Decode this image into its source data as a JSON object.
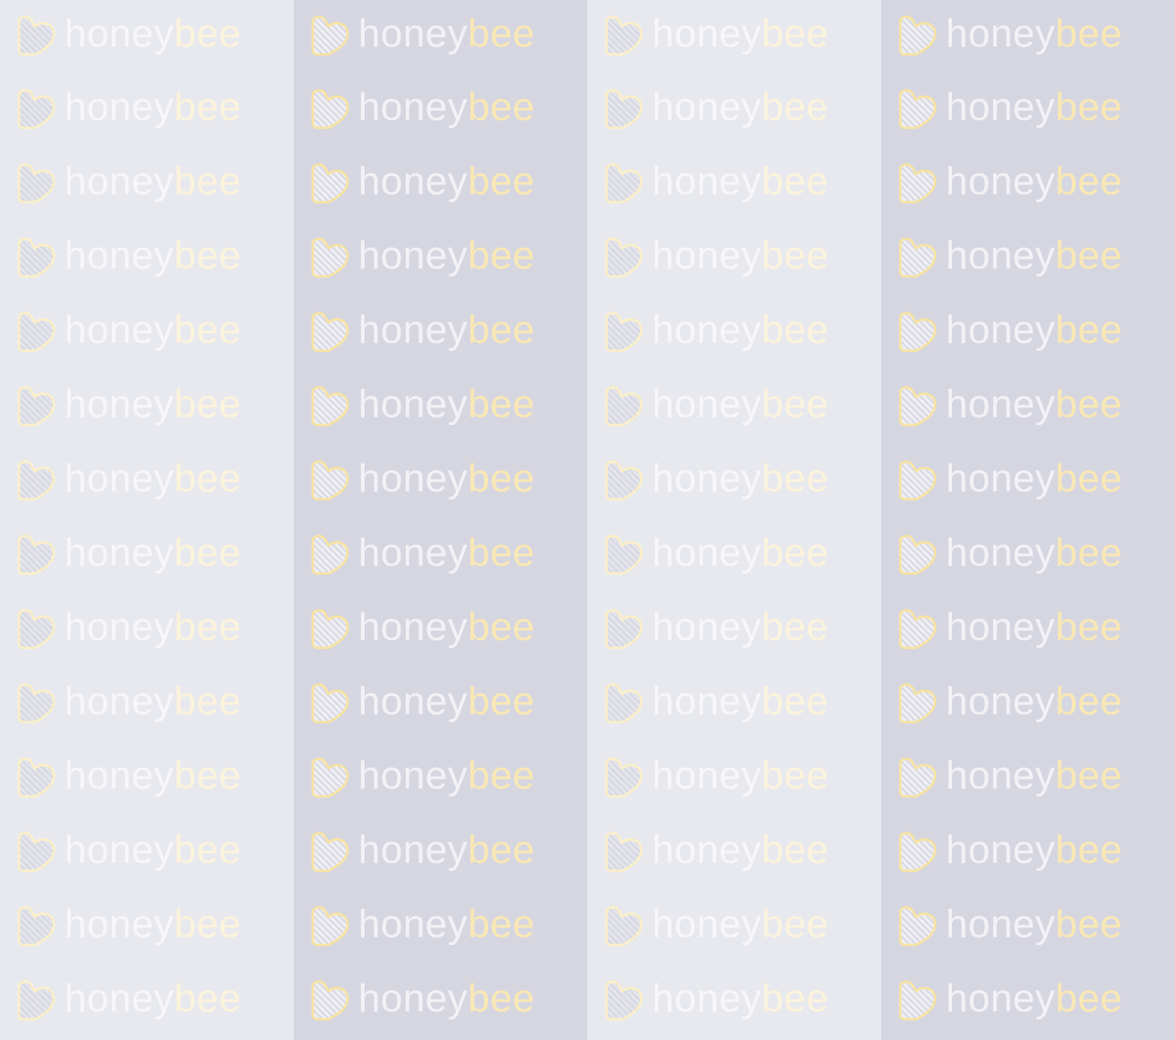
{
  "brand": {
    "word_primary": "honey",
    "word_accent": "bee",
    "icon": "striped-heart-icon"
  },
  "rows_per_column": 14,
  "columns": [
    {
      "bg": "#e8e9ee",
      "word_primary_color": "#f7f7f9",
      "word_accent_color": "#fcf3dc",
      "icon_outline_color": "#fbefc8",
      "icon_stripe_color": "#d9dae3"
    },
    {
      "bg": "#d6d6e1",
      "word_primary_color": "#f2f2f6",
      "word_accent_color": "#f9e8b4",
      "icon_outline_color": "#f7e3a2",
      "icon_stripe_color": "#eeeef3"
    },
    {
      "bg": "#e8e9ee",
      "word_primary_color": "#f7f7f9",
      "word_accent_color": "#fcf3dc",
      "icon_outline_color": "#fbefc8",
      "icon_stripe_color": "#d9dae3"
    },
    {
      "bg": "#d6d6e1",
      "word_primary_color": "#f2f2f6",
      "word_accent_color": "#f9e8b4",
      "icon_outline_color": "#f7e3a2",
      "icon_stripe_color": "#eeeef3"
    }
  ]
}
